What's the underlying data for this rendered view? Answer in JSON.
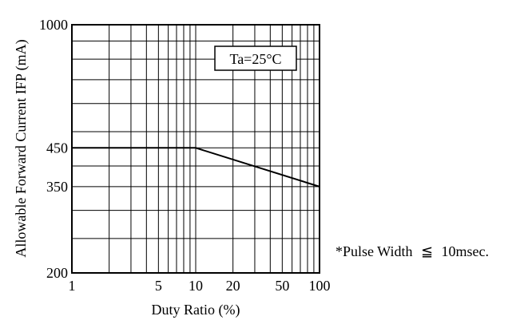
{
  "chart_data": {
    "type": "line",
    "xlabel": "Duty Ratio (%)",
    "ylabel": "Allowable Forward Current IFP (mA)",
    "x_scale": "log",
    "y_scale": "log",
    "xlim": [
      1,
      100
    ],
    "ylim": [
      200,
      1000
    ],
    "x_ticks": [
      1,
      5,
      10,
      20,
      50,
      100
    ],
    "x_tick_labels": [
      "1",
      "5",
      "10",
      "20",
      "50",
      "100"
    ],
    "y_ticks": [
      200,
      350,
      450,
      1000
    ],
    "y_tick_labels": [
      "200",
      "350",
      "450",
      "1000"
    ],
    "x_grid": [
      2,
      3,
      4,
      5,
      6,
      7,
      8,
      9,
      10,
      20,
      30,
      40,
      50,
      60,
      70,
      80,
      90
    ],
    "y_grid": [
      250,
      300,
      350,
      400,
      450,
      500,
      600,
      700,
      800,
      900
    ],
    "grid": true,
    "series": [
      {
        "x": [
          1,
          10,
          100
        ],
        "y": [
          450,
          450,
          350
        ]
      }
    ],
    "annotations": {
      "condition": "Ta=25°C",
      "note_prefix": "*Pulse Width",
      "note_symbol": "≦",
      "note_value": "10msec."
    }
  }
}
